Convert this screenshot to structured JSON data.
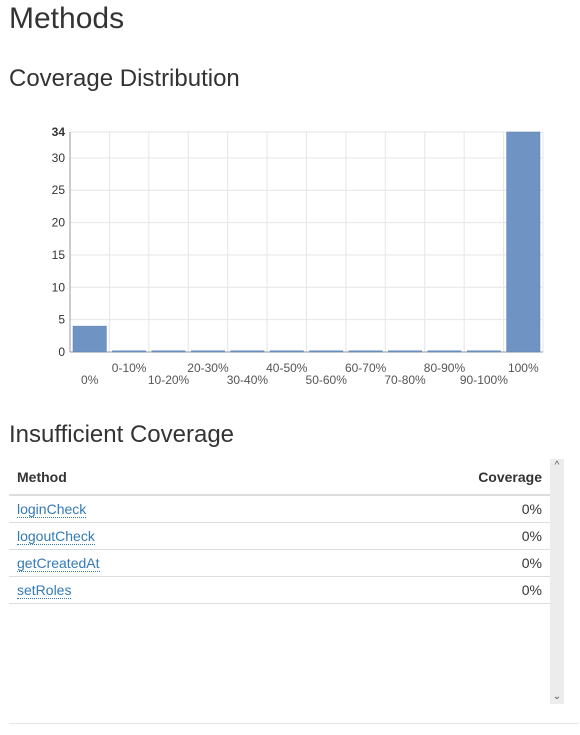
{
  "page": {
    "title": "Methods"
  },
  "coverage_distribution": {
    "heading": "Coverage Distribution"
  },
  "insufficient_coverage": {
    "heading": "Insufficient Coverage",
    "columns": {
      "method": "Method",
      "coverage": "Coverage"
    },
    "rows": [
      {
        "method": "loginCheck",
        "coverage": "0%"
      },
      {
        "method": "logoutCheck",
        "coverage": "0%"
      },
      {
        "method": "getCreatedAt",
        "coverage": "0%"
      },
      {
        "method": "setRoles",
        "coverage": "0%"
      }
    ]
  },
  "colors": {
    "bar": "#6f93c2",
    "bar_stroke": "#5b80b2",
    "grid": "#e6e6e6",
    "link": "#337ab7"
  },
  "chart_data": {
    "type": "bar",
    "categories": [
      "0%",
      "0-10%",
      "10-20%",
      "20-30%",
      "30-40%",
      "40-50%",
      "50-60%",
      "60-70%",
      "70-80%",
      "80-90%",
      "90-100%",
      "100%"
    ],
    "values": [
      4,
      0,
      0,
      0,
      0,
      0,
      0,
      0,
      0,
      0,
      0,
      34
    ],
    "yticks": [
      0,
      5,
      10,
      15,
      20,
      25,
      30,
      34
    ],
    "ylim": [
      0,
      34
    ],
    "grid": true,
    "legend": "none"
  }
}
